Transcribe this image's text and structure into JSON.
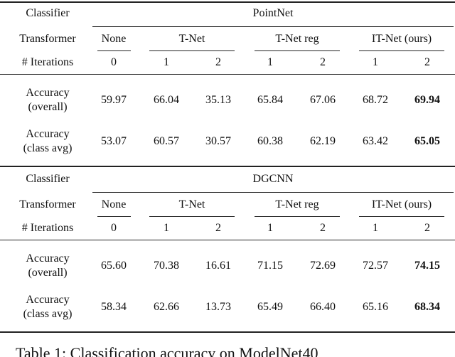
{
  "blocks": [
    {
      "classifier_label": "Classifier",
      "classifier": "PointNet",
      "transformer_label": "Transformer",
      "groups": [
        "None",
        "T-Net",
        "T-Net reg",
        "IT-Net (ours)"
      ],
      "iterations_label": "# Iterations",
      "iterations": [
        "0",
        "1",
        "2",
        "1",
        "2",
        "1",
        "2"
      ],
      "rows": [
        {
          "label": [
            "Accuracy",
            "(overall)"
          ],
          "values": [
            "59.97",
            "66.04",
            "35.13",
            "65.84",
            "67.06",
            "68.72",
            "69.94"
          ]
        },
        {
          "label": [
            "Accuracy",
            "(class avg)"
          ],
          "values": [
            "53.07",
            "60.57",
            "30.57",
            "60.38",
            "62.19",
            "63.42",
            "65.05"
          ]
        }
      ]
    },
    {
      "classifier_label": "Classifier",
      "classifier": "DGCNN",
      "transformer_label": "Transformer",
      "groups": [
        "None",
        "T-Net",
        "T-Net reg",
        "IT-Net (ours)"
      ],
      "iterations_label": "# Iterations",
      "iterations": [
        "0",
        "1",
        "2",
        "1",
        "2",
        "1",
        "2"
      ],
      "rows": [
        {
          "label": [
            "Accuracy",
            "(overall)"
          ],
          "values": [
            "65.60",
            "70.38",
            "16.61",
            "71.15",
            "72.69",
            "72.57",
            "74.15"
          ]
        },
        {
          "label": [
            "Accuracy",
            "(class avg)"
          ],
          "values": [
            "58.34",
            "62.66",
            "13.73",
            "65.49",
            "66.40",
            "65.16",
            "68.34"
          ]
        }
      ]
    }
  ],
  "caption": "Table 1: Classification accuracy on ModelNet40"
}
